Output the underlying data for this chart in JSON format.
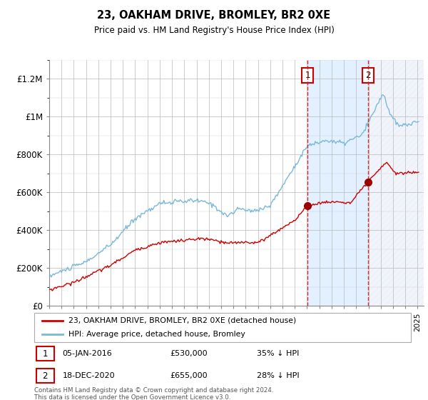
{
  "title": "23, OAKHAM DRIVE, BROMLEY, BR2 0XE",
  "subtitle": "Price paid vs. HM Land Registry's House Price Index (HPI)",
  "legend_line1": "23, OAKHAM DRIVE, BROMLEY, BR2 0XE (detached house)",
  "legend_line2": "HPI: Average price, detached house, Bromley",
  "annotation1_label": "1",
  "annotation1_date": "05-JAN-2016",
  "annotation1_price": "£530,000",
  "annotation1_hpi": "35% ↓ HPI",
  "annotation2_label": "2",
  "annotation2_date": "18-DEC-2020",
  "annotation2_price": "£655,000",
  "annotation2_hpi": "28% ↓ HPI",
  "footnote": "Contains HM Land Registry data © Crown copyright and database right 2024.\nThis data is licensed under the Open Government Licence v3.0.",
  "hpi_color": "#7ab8d9",
  "hpi_fill_color": "#c8dff0",
  "price_color": "#cc0000",
  "marker_color": "#990000",
  "vline_color": "#cc2222",
  "annotation_box_color": "#cc0000",
  "shade_between_color": "#ddeeff",
  "shade_after_color": "#e8eef8",
  "ylim": [
    0,
    1300000
  ],
  "yticks": [
    0,
    200000,
    400000,
    600000,
    800000,
    1000000,
    1200000
  ],
  "ytick_labels": [
    "£0",
    "£200K",
    "£400K",
    "£600K",
    "£800K",
    "£1M",
    "£1.2M"
  ],
  "x_start_year": 1995,
  "x_end_year": 2025,
  "event1_year": 2016.04,
  "event2_year": 2020.97,
  "event1_price": 530000,
  "event2_price": 655000
}
